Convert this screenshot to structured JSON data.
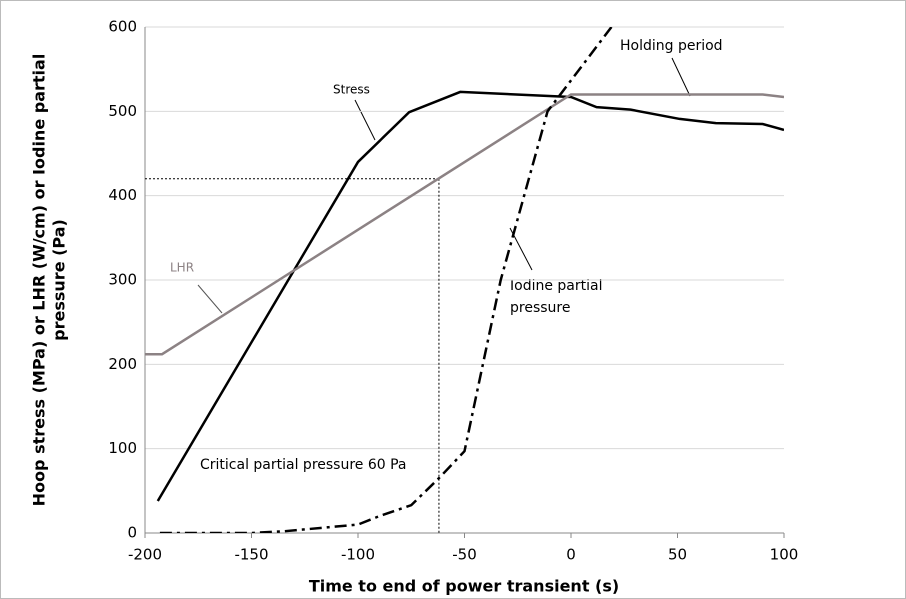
{
  "chart_data": {
    "type": "line",
    "xlabel": "Time to end of power transient (s)",
    "ylabel": [
      "Hoop stress (MPa) or LHR (W/cm) or Iodine partial",
      "pressure (Pa)"
    ],
    "xlim": [
      -200,
      100
    ],
    "xticks": [
      -200,
      -150,
      -100,
      -50,
      0,
      50,
      100
    ],
    "ylim": [
      0,
      600
    ],
    "yticks": [
      0,
      100,
      200,
      300,
      400,
      500,
      600
    ],
    "grid": true,
    "series": [
      {
        "name": "Stress",
        "color": "#000000",
        "dash": "solid",
        "x": [
          -194,
          -100,
          -76,
          -52,
          0,
          12,
          28,
          51,
          68,
          90,
          100
        ],
        "values": [
          38,
          440,
          499,
          523,
          517,
          505,
          502,
          491,
          486,
          485,
          478
        ]
      },
      {
        "name": "LHR",
        "color": "#8c8284",
        "dash": "solid",
        "x": [
          -200,
          -192,
          0,
          90,
          100
        ],
        "values": [
          212,
          212,
          520,
          520,
          517
        ]
      },
      {
        "name": "Iodine partial pressure",
        "color": "#000000",
        "dash": "dashdot",
        "x": [
          -193,
          -150,
          -135,
          -100,
          -90,
          -75,
          -62,
          -50,
          -33,
          -11,
          19
        ],
        "values": [
          0,
          0,
          2,
          10,
          20,
          33,
          65,
          97,
          300,
          500,
          600
        ]
      }
    ],
    "annotations": {
      "stress": "Stress",
      "lhr": "LHR",
      "holding": "Holding period",
      "iodine": [
        "Iodine partial",
        "pressure"
      ],
      "critical": "Critical partial pressure 60 Pa"
    },
    "reference": {
      "x": -62,
      "y": 420
    }
  }
}
